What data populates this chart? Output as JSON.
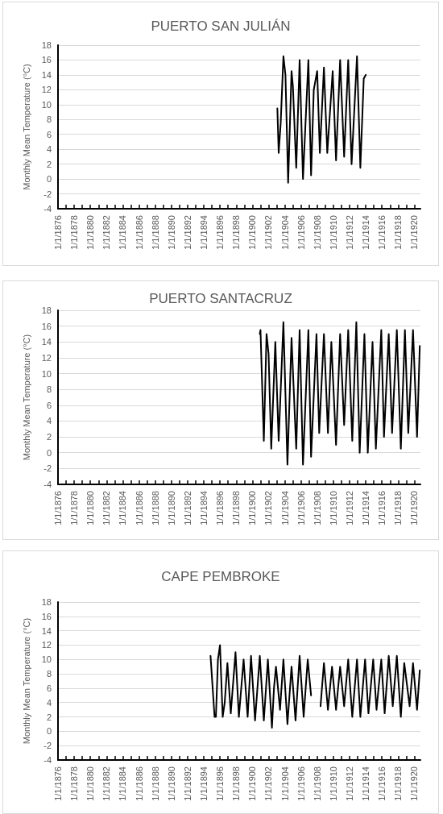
{
  "chart_data": [
    {
      "type": "line",
      "title": "PUERTO SAN JULIÁN",
      "ylabel": "Monthly Mean Temperature (°C)",
      "x": [
        "1903-02",
        "1903-04",
        "1903-07",
        "1903-11",
        "1904-02",
        "1904-06",
        "1904-11",
        "1905-01",
        "1905-06",
        "1905-11",
        "1906-04",
        "1906-12",
        "1907-04",
        "1907-08",
        "1908-01",
        "1908-05",
        "1908-11",
        "1909-04",
        "1909-12",
        "1910-05",
        "1910-11",
        "1911-05",
        "1911-11",
        "1912-04",
        "1912-12",
        "1913-05",
        "1913-10",
        "1914-01"
      ],
      "series": [
        {
          "color": "#000000",
          "values": [
            9.5,
            3.5,
            7.5,
            16.5,
            14,
            -0.5,
            14.5,
            12.5,
            1.5,
            16,
            0,
            16,
            0.5,
            12,
            14.5,
            3.5,
            15,
            3.5,
            14.5,
            2.5,
            16,
            3,
            16,
            2,
            16.5,
            1.5,
            13.5,
            14
          ]
        }
      ],
      "xlim": [
        "1876-01-01",
        "1920-10-01"
      ],
      "xticks": [
        {
          "value": "1876-01-01",
          "label": "1/1/1876"
        },
        {
          "value": "1877-01-01",
          "label": null
        },
        {
          "value": "1878-01-01",
          "label": "1/1/1878"
        },
        {
          "value": "1879-01-01",
          "label": null
        },
        {
          "value": "1880-01-01",
          "label": "1/1/1880"
        },
        {
          "value": "1881-01-01",
          "label": null
        },
        {
          "value": "1882-01-01",
          "label": "1/1/1882"
        },
        {
          "value": "1883-01-01",
          "label": null
        },
        {
          "value": "1884-01-01",
          "label": "1/1/1884"
        },
        {
          "value": "1885-01-01",
          "label": null
        },
        {
          "value": "1886-01-01",
          "label": "1/1/1886"
        },
        {
          "value": "1887-01-01",
          "label": null
        },
        {
          "value": "1888-01-01",
          "label": "1/1/1888"
        },
        {
          "value": "1889-01-01",
          "label": null
        },
        {
          "value": "1890-01-01",
          "label": "1/1/1890"
        },
        {
          "value": "1891-01-01",
          "label": null
        },
        {
          "value": "1892-01-01",
          "label": "1/1/1892"
        },
        {
          "value": "1893-01-01",
          "label": null
        },
        {
          "value": "1894-01-01",
          "label": "1/1/1894"
        },
        {
          "value": "1895-01-01",
          "label": null
        },
        {
          "value": "1896-01-01",
          "label": "1/1/1896"
        },
        {
          "value": "1897-01-01",
          "label": null
        },
        {
          "value": "1898-01-01",
          "label": "1/1/1898"
        },
        {
          "value": "1899-01-01",
          "label": null
        },
        {
          "value": "1900-01-01",
          "label": "1/1/1900"
        },
        {
          "value": "1901-01-01",
          "label": null
        },
        {
          "value": "1902-01-01",
          "label": "1/1/1902"
        },
        {
          "value": "1903-01-01",
          "label": null
        },
        {
          "value": "1904-01-01",
          "label": "1/1/1904"
        },
        {
          "value": "1905-01-01",
          "label": null
        },
        {
          "value": "1906-01-01",
          "label": "1/1/1906"
        },
        {
          "value": "1907-01-01",
          "label": null
        },
        {
          "value": "1908-01-01",
          "label": "1/1/1908"
        },
        {
          "value": "1909-01-01",
          "label": null
        },
        {
          "value": "1910-01-01",
          "label": "1/1/1910"
        },
        {
          "value": "1911-01-01",
          "label": null
        },
        {
          "value": "1912-01-01",
          "label": "1/1/1912"
        },
        {
          "value": "1913-01-01",
          "label": null
        },
        {
          "value": "1914-01-01",
          "label": "1/1/1914"
        },
        {
          "value": "1915-01-01",
          "label": null
        },
        {
          "value": "1916-01-01",
          "label": "1/1/1916"
        },
        {
          "value": "1917-01-01",
          "label": null
        },
        {
          "value": "1918-01-01",
          "label": "1/1/1918"
        },
        {
          "value": "1919-01-01",
          "label": null
        },
        {
          "value": "1920-01-01",
          "label": "1/1/1920"
        }
      ],
      "ylim": [
        -4,
        18
      ],
      "yticks": [
        -4,
        -2,
        0,
        2,
        4,
        6,
        8,
        10,
        12,
        14,
        16,
        18
      ],
      "grid": "y",
      "marker": "none",
      "line_style": "solid"
    },
    {
      "type": "line",
      "title": "PUERTO SANTACRUZ",
      "ylabel": "Monthly Mean Temperature (°C)",
      "x": [
        "1900-12",
        "1901-01",
        "1901-06",
        "1901-10",
        "1902-01",
        "1902-05",
        "1902-11",
        "1903-04",
        "1903-11",
        "1904-05",
        "1904-11",
        "1905-06",
        "1905-11",
        "1906-04",
        "1906-12",
        "1907-04",
        "1907-12",
        "1908-04",
        "1908-11",
        "1909-05",
        "1909-10",
        "1910-05",
        "1910-11",
        "1911-05",
        "1911-11",
        "1912-05",
        "1912-11",
        "1913-04",
        "1913-11",
        "1914-04",
        "1914-11",
        "1915-04",
        "1915-12",
        "1916-04",
        "1916-11",
        "1917-04",
        "1917-11",
        "1918-05",
        "1918-11",
        "1919-04",
        "1919-11",
        "1920-05",
        "1920-09"
      ],
      "series": [
        {
          "color": "#000000",
          "values": [
            15,
            15.5,
            1.5,
            15,
            12.5,
            0.5,
            14,
            1.5,
            16.5,
            -1.5,
            14.5,
            0.5,
            15.5,
            -1.5,
            15.5,
            -0.5,
            15,
            2.5,
            15,
            2.5,
            14,
            1,
            15,
            3.5,
            15.5,
            1.5,
            16.5,
            0,
            15,
            0,
            14,
            0.5,
            15.5,
            2,
            15,
            2.5,
            15.5,
            0.5,
            15.5,
            2.5,
            15.5,
            2,
            13.5
          ]
        }
      ],
      "xlim": [
        "1876-01-01",
        "1920-10-01"
      ],
      "xticks": [
        {
          "value": "1876-01-01",
          "label": "1/1/1876"
        },
        {
          "value": "1877-01-01",
          "label": null
        },
        {
          "value": "1878-01-01",
          "label": "1/1/1878"
        },
        {
          "value": "1879-01-01",
          "label": null
        },
        {
          "value": "1880-01-01",
          "label": "1/1/1880"
        },
        {
          "value": "1881-01-01",
          "label": null
        },
        {
          "value": "1882-01-01",
          "label": "1/1/1882"
        },
        {
          "value": "1883-01-01",
          "label": null
        },
        {
          "value": "1884-01-01",
          "label": "1/1/1884"
        },
        {
          "value": "1885-01-01",
          "label": null
        },
        {
          "value": "1886-01-01",
          "label": "1/1/1886"
        },
        {
          "value": "1887-01-01",
          "label": null
        },
        {
          "value": "1888-01-01",
          "label": "1/1/1888"
        },
        {
          "value": "1889-01-01",
          "label": null
        },
        {
          "value": "1890-01-01",
          "label": "1/1/1890"
        },
        {
          "value": "1891-01-01",
          "label": null
        },
        {
          "value": "1892-01-01",
          "label": "1/1/1892"
        },
        {
          "value": "1893-01-01",
          "label": null
        },
        {
          "value": "1894-01-01",
          "label": "1/1/1894"
        },
        {
          "value": "1895-01-01",
          "label": null
        },
        {
          "value": "1896-01-01",
          "label": "1/1/1896"
        },
        {
          "value": "1897-01-01",
          "label": null
        },
        {
          "value": "1898-01-01",
          "label": "1/1/1898"
        },
        {
          "value": "1899-01-01",
          "label": null
        },
        {
          "value": "1900-01-01",
          "label": "1/1/1900"
        },
        {
          "value": "1901-01-01",
          "label": null
        },
        {
          "value": "1902-01-01",
          "label": "1/1/1902"
        },
        {
          "value": "1903-01-01",
          "label": null
        },
        {
          "value": "1904-01-01",
          "label": "1/1/1904"
        },
        {
          "value": "1905-01-01",
          "label": null
        },
        {
          "value": "1906-01-01",
          "label": "1/1/1906"
        },
        {
          "value": "1907-01-01",
          "label": null
        },
        {
          "value": "1908-01-01",
          "label": "1/1/1908"
        },
        {
          "value": "1909-01-01",
          "label": null
        },
        {
          "value": "1910-01-01",
          "label": "1/1/1910"
        },
        {
          "value": "1911-01-01",
          "label": null
        },
        {
          "value": "1912-01-01",
          "label": "1/1/1912"
        },
        {
          "value": "1913-01-01",
          "label": null
        },
        {
          "value": "1914-01-01",
          "label": "1/1/1914"
        },
        {
          "value": "1915-01-01",
          "label": null
        },
        {
          "value": "1916-01-01",
          "label": "1/1/1916"
        },
        {
          "value": "1917-01-01",
          "label": null
        },
        {
          "value": "1918-01-01",
          "label": "1/1/1918"
        },
        {
          "value": "1919-01-01",
          "label": null
        },
        {
          "value": "1920-01-01",
          "label": "1/1/1920"
        }
      ],
      "ylim": [
        -4,
        18
      ],
      "yticks": [
        -4,
        -2,
        0,
        2,
        4,
        6,
        8,
        10,
        12,
        14,
        16,
        18
      ],
      "grid": "y",
      "marker": "none",
      "line_style": "solid"
    },
    {
      "type": "line",
      "title": "CAPE PEMBROKE",
      "ylabel": "Monthly Mean Temperature (°C)",
      "x": [
        "1894-11",
        "1895-05",
        "1895-07",
        "1895-10",
        "1896-01",
        "1896-05",
        "1896-08",
        "1896-12",
        "1897-05",
        "1897-12",
        "1898-05",
        "1898-12",
        "1899-06",
        "1899-11",
        "1900-05",
        "1900-12",
        "1901-06",
        "1901-12",
        "1902-06",
        "1902-09",
        "1902-12",
        "1903-06",
        "1903-11",
        "1904-05",
        "1904-11",
        "1905-05",
        "1905-11",
        "1906-05",
        "1906-11",
        "1907-04",
        "1907-10",
        "1908-06",
        "1908-11",
        "1909-05",
        "1909-11",
        "1910-05",
        "1910-11",
        "1911-05",
        "1911-11",
        "1912-05",
        "1912-12",
        "1913-05",
        "1913-12",
        "1914-05",
        "1914-12",
        "1915-05",
        "1915-12",
        "1916-05",
        "1916-11",
        "1917-05",
        "1917-11",
        "1918-05",
        "1918-10",
        "1919-06",
        "1919-11",
        "1920-05",
        "1920-09"
      ],
      "series": [
        {
          "color": "#000000",
          "values": [
            10.5,
            2,
            2,
            10,
            12,
            2,
            4,
            9.5,
            2.5,
            11,
            2,
            10,
            2,
            10.5,
            1.5,
            10.5,
            1.5,
            10,
            0.5,
            6,
            9,
            3,
            10,
            1,
            9,
            1.5,
            10.5,
            2,
            10,
            5,
            null,
            3.5,
            9.5,
            3,
            9,
            3,
            9,
            3.5,
            10,
            2,
            10,
            2,
            10,
            2.5,
            10,
            3,
            10,
            2.5,
            10.5,
            3.5,
            10.5,
            2,
            9.5,
            3.5,
            9.5,
            3,
            8.5
          ]
        }
      ],
      "xlim": [
        "1876-01-01",
        "1920-10-01"
      ],
      "xticks": [
        {
          "value": "1876-01-01",
          "label": "1/1/1876"
        },
        {
          "value": "1877-01-01",
          "label": null
        },
        {
          "value": "1878-01-01",
          "label": "1/1/1878"
        },
        {
          "value": "1879-01-01",
          "label": null
        },
        {
          "value": "1880-01-01",
          "label": "1/1/1880"
        },
        {
          "value": "1881-01-01",
          "label": null
        },
        {
          "value": "1882-01-01",
          "label": "1/1/1882"
        },
        {
          "value": "1883-01-01",
          "label": null
        },
        {
          "value": "1884-01-01",
          "label": "1/1/1884"
        },
        {
          "value": "1885-01-01",
          "label": null
        },
        {
          "value": "1886-01-01",
          "label": "1/1/1886"
        },
        {
          "value": "1887-01-01",
          "label": null
        },
        {
          "value": "1888-01-01",
          "label": "1/1/1888"
        },
        {
          "value": "1889-01-01",
          "label": null
        },
        {
          "value": "1890-01-01",
          "label": "1/1/1890"
        },
        {
          "value": "1891-01-01",
          "label": null
        },
        {
          "value": "1892-01-01",
          "label": "1/1/1892"
        },
        {
          "value": "1893-01-01",
          "label": null
        },
        {
          "value": "1894-01-01",
          "label": "1/1/1894"
        },
        {
          "value": "1895-01-01",
          "label": null
        },
        {
          "value": "1896-01-01",
          "label": "1/1/1896"
        },
        {
          "value": "1897-01-01",
          "label": null
        },
        {
          "value": "1898-01-01",
          "label": "1/1/1898"
        },
        {
          "value": "1899-01-01",
          "label": null
        },
        {
          "value": "1900-01-01",
          "label": "1/1/1900"
        },
        {
          "value": "1901-01-01",
          "label": null
        },
        {
          "value": "1902-01-01",
          "label": "1/1/1902"
        },
        {
          "value": "1903-01-01",
          "label": null
        },
        {
          "value": "1904-01-01",
          "label": "1/1/1904"
        },
        {
          "value": "1905-01-01",
          "label": null
        },
        {
          "value": "1906-01-01",
          "label": "1/1/1906"
        },
        {
          "value": "1907-01-01",
          "label": null
        },
        {
          "value": "1908-01-01",
          "label": "1/1/1908"
        },
        {
          "value": "1909-01-01",
          "label": null
        },
        {
          "value": "1910-01-01",
          "label": "1/1/1910"
        },
        {
          "value": "1911-01-01",
          "label": null
        },
        {
          "value": "1912-01-01",
          "label": "1/1/1912"
        },
        {
          "value": "1913-01-01",
          "label": null
        },
        {
          "value": "1914-01-01",
          "label": "1/1/1914"
        },
        {
          "value": "1915-01-01",
          "label": null
        },
        {
          "value": "1916-01-01",
          "label": "1/1/1916"
        },
        {
          "value": "1917-01-01",
          "label": null
        },
        {
          "value": "1918-01-01",
          "label": "1/1/1918"
        },
        {
          "value": "1919-01-01",
          "label": null
        },
        {
          "value": "1920-01-01",
          "label": "1/1/1920"
        }
      ],
      "ylim": [
        -4,
        18
      ],
      "yticks": [
        -4,
        -2,
        0,
        2,
        4,
        6,
        8,
        10,
        12,
        14,
        16,
        18
      ],
      "grid": "y",
      "marker": "none",
      "line_style": "solid"
    }
  ]
}
